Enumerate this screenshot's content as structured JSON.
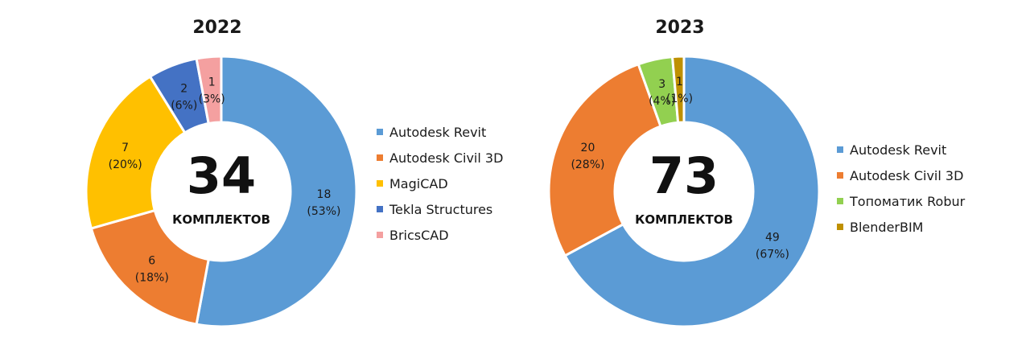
{
  "chart_data": [
    {
      "type": "pie",
      "title": "2022",
      "center_value": "34",
      "center_label": "КОМПЛЕКТОВ",
      "legend_position": "right",
      "slices": [
        {
          "name": "Autodesk Revit",
          "value": 18,
          "percent_label": "(53%)",
          "color": "#5B9BD5"
        },
        {
          "name": "Autodesk Civil 3D",
          "value": 6,
          "percent_label": "(18%)",
          "color": "#ED7D31"
        },
        {
          "name": "MagiCAD",
          "value": 7,
          "percent_label": "(20%)",
          "color": "#FFC000"
        },
        {
          "name": "Tekla Structures",
          "value": 2,
          "percent_label": "(6%)",
          "color": "#4472C4"
        },
        {
          "name": "BricsCAD",
          "value": 1,
          "percent_label": "(3%)",
          "color": "#F4A0A0"
        }
      ]
    },
    {
      "type": "pie",
      "title": "2023",
      "center_value": "73",
      "center_label": "КОМПЛЕКТОВ",
      "legend_position": "right",
      "slices": [
        {
          "name": "Autodesk Revit",
          "value": 49,
          "percent_label": "(67%)",
          "color": "#5B9BD5"
        },
        {
          "name": "Autodesk Civil 3D",
          "value": 20,
          "percent_label": "(28%)",
          "color": "#ED7D31"
        },
        {
          "name": "Топоматик Robur",
          "value": 3,
          "percent_label": "(4%)",
          "color": "#92D050"
        },
        {
          "name": "BlenderBIM",
          "value": 1,
          "percent_label": "(1%)",
          "color": "#BF9000"
        }
      ]
    }
  ]
}
